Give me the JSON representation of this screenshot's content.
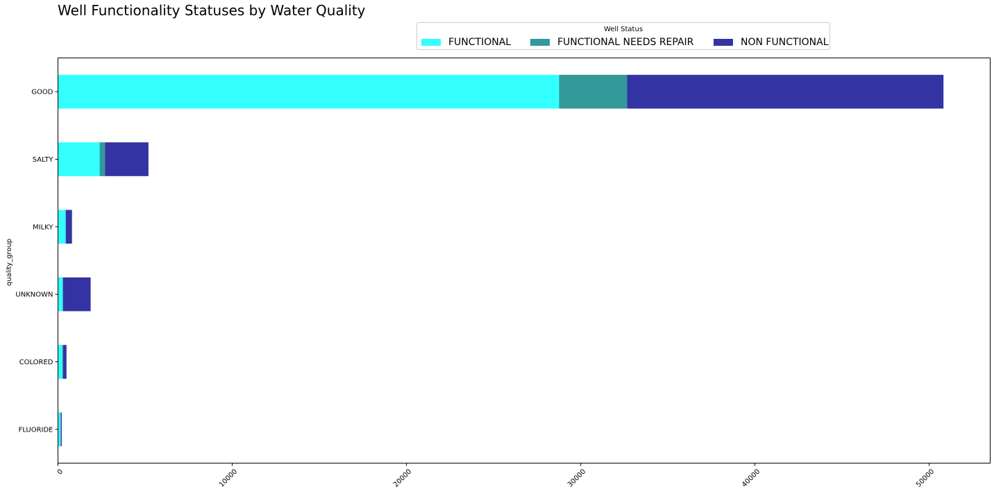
{
  "chart_data": {
    "type": "bar",
    "orientation": "horizontal",
    "stacked": true,
    "title": "Well Functionality Statuses by Water Quality",
    "ylabel": "quality_group",
    "xlabel": "",
    "categories": [
      "GOOD",
      "SALTY",
      "MILKY",
      "UNKNOWN",
      "COLORED",
      "FLUORIDE"
    ],
    "series": [
      {
        "name": "FUNCTIONAL",
        "color": "#33ffff",
        "values": [
          28760,
          2394,
          438,
          264,
          246,
          151
        ]
      },
      {
        "name": "FUNCTIONAL NEEDS REPAIR",
        "color": "#339999",
        "values": [
          3900,
          310,
          14,
          35,
          54,
          12
        ]
      },
      {
        "name": "NON FUNCTIONAL",
        "color": "#3333a3",
        "values": [
          18160,
          2490,
          352,
          1577,
          190,
          54
        ]
      }
    ],
    "xlim": [
      0,
      53500
    ],
    "xticks": [
      0,
      10000,
      20000,
      30000,
      40000,
      50000
    ],
    "xtick_labels": [
      "0",
      "10000",
      "20000",
      "30000",
      "40000",
      "50000"
    ],
    "xtick_rotation": 45,
    "legend": {
      "title": "Well Status",
      "placement": "top-center",
      "columns": 3
    },
    "grid": false
  }
}
